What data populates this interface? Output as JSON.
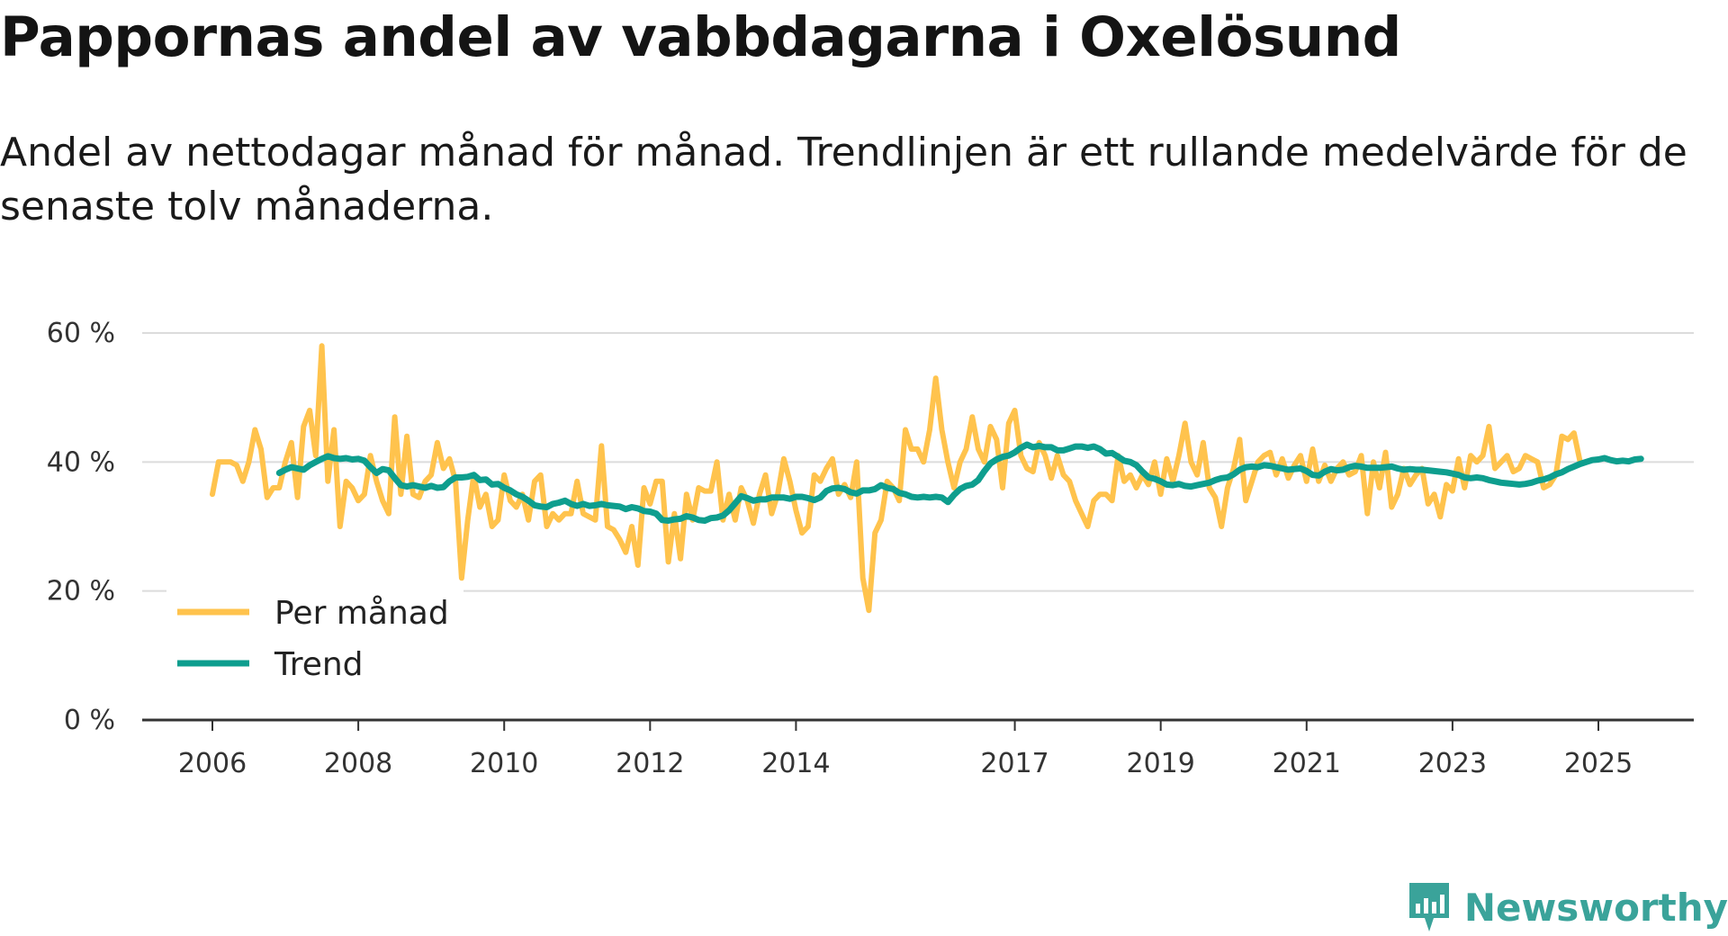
{
  "title": "Pappornas andel av vabbdagarna i Oxelösund",
  "subtitle": "Andel av nettodagar månad för månad. Trendlinjen är ett rullande medelvärde för de senaste tolv månaderna.",
  "brand": "Newsworthy",
  "colors": {
    "monthly": "#ffc34d",
    "trend": "#0e9e8e",
    "grid": "#dcdcdc",
    "axis": "#333333",
    "brand": "#3aa39a"
  },
  "chart_data": {
    "type": "line",
    "title": "Pappornas andel av vabbdagarna i Oxelösund",
    "xlabel": "",
    "ylabel": "",
    "ylim": [
      0,
      60
    ],
    "xlim": [
      2005.5,
      2026.7
    ],
    "y_ticks": [
      "0 %",
      "20 %",
      "40 %",
      "60 %"
    ],
    "y_tick_values": [
      0,
      20,
      40,
      60
    ],
    "x_ticks": [
      "2006",
      "2008",
      "2010",
      "2012",
      "2014",
      "2017",
      "2019",
      "2021",
      "2023",
      "2025"
    ],
    "x_tick_values": [
      2006,
      2008,
      2010,
      2012,
      2014,
      2017,
      2019,
      2021,
      2023,
      2025
    ],
    "legend": [
      "Per månad",
      "Trend"
    ],
    "legend_position": "bottom-left",
    "series": [
      {
        "name": "Per månad",
        "start": 2006.0,
        "step": 0.08333,
        "values": [
          35,
          40,
          40,
          40,
          39.5,
          37,
          40,
          45,
          42,
          34.5,
          36,
          36,
          40,
          43,
          34.5,
          45.5,
          48,
          41,
          58,
          37,
          45,
          30,
          37,
          36,
          34,
          35,
          41,
          37,
          34,
          32,
          47,
          35,
          44,
          35,
          34.5,
          37,
          38,
          43,
          39,
          40.5,
          37,
          22,
          31,
          38,
          33,
          35,
          30,
          31,
          38,
          34,
          33,
          35,
          31,
          37,
          38,
          30,
          32,
          31,
          32,
          32,
          37,
          32,
          31.5,
          31,
          42.5,
          30,
          29.5,
          28,
          26,
          30,
          24,
          36,
          33.5,
          37,
          37,
          24.5,
          32,
          25,
          35,
          31,
          36,
          35.5,
          35.5,
          40,
          31,
          35,
          31,
          36,
          34,
          30.5,
          35,
          38,
          32,
          35,
          40.5,
          37,
          32.5,
          29,
          30,
          38,
          37,
          39,
          40.5,
          35,
          36.5,
          34.5,
          40,
          22,
          17,
          29,
          31,
          37,
          36,
          34,
          45,
          42,
          42,
          40,
          45,
          53,
          45,
          40,
          36,
          40,
          42,
          47,
          42,
          40,
          45.5,
          43.5,
          36,
          46,
          48,
          41,
          39,
          38.5,
          43,
          41,
          37.5,
          41,
          38,
          37,
          34,
          32,
          30,
          34,
          35,
          35,
          34,
          41,
          37,
          38,
          36,
          38,
          36.5,
          40,
          35,
          40.5,
          37,
          41,
          46,
          40,
          38,
          43,
          36,
          34.5,
          30,
          36,
          39,
          43.5,
          34,
          37,
          40,
          41,
          41.5,
          38,
          40.5,
          37.5,
          39.5,
          41,
          37,
          42,
          37,
          39.5,
          37,
          39,
          40,
          38,
          38.5,
          41,
          32,
          40,
          36,
          41.5,
          33,
          35,
          39,
          36.5,
          38,
          39,
          33.5,
          35,
          31.5,
          36.5,
          35.5,
          40.5,
          36,
          41,
          40,
          41,
          45.5,
          39,
          40,
          41,
          38.5,
          39,
          41,
          40.5,
          40,
          36,
          36.5,
          38,
          44,
          43.5,
          44.5,
          40
        ]
      },
      {
        "name": "Trend",
        "start": 2006.917,
        "step": 0.08333,
        "values": [
          38.3,
          38.8,
          39.2,
          39.0,
          38.8,
          39.5,
          40.0,
          40.5,
          40.9,
          40.6,
          40.5,
          40.6,
          40.4,
          40.5,
          40.2,
          39.2,
          38.3,
          38.9,
          38.7,
          37.5,
          36.4,
          36.2,
          36.4,
          36.2,
          36.0,
          36.3,
          36.0,
          36.1,
          37.0,
          37.6,
          37.6,
          37.7,
          38.0,
          37.2,
          37.3,
          36.5,
          36.6,
          36.0,
          35.6,
          35.0,
          34.6,
          34.0,
          33.3,
          33.1,
          33.0,
          33.5,
          33.7,
          34.0,
          33.5,
          33.2,
          33.5,
          33.2,
          33.3,
          33.5,
          33.3,
          33.2,
          33.1,
          32.7,
          33.0,
          32.8,
          32.4,
          32.3,
          32.0,
          31.0,
          30.9,
          31.1,
          31.2,
          31.6,
          31.4,
          31.0,
          30.9,
          31.3,
          31.4,
          31.7,
          32.5,
          33.6,
          34.7,
          34.4,
          34.0,
          34.2,
          34.2,
          34.5,
          34.5,
          34.5,
          34.3,
          34.6,
          34.6,
          34.4,
          34.1,
          34.5,
          35.5,
          35.9,
          36.0,
          35.8,
          35.3,
          35.1,
          35.6,
          35.6,
          35.8,
          36.4,
          36.0,
          35.8,
          35.2,
          35.0,
          34.6,
          34.5,
          34.6,
          34.5,
          34.6,
          34.5,
          33.8,
          34.9,
          35.8,
          36.3,
          36.5,
          37.2,
          38.6,
          39.8,
          40.4,
          40.8,
          41.0,
          41.5,
          42.2,
          42.7,
          42.3,
          42.5,
          42.3,
          42.3,
          41.8,
          41.8,
          42.1,
          42.4,
          42.4,
          42.2,
          42.4,
          42.0,
          41.3,
          41.4,
          40.8,
          40.2,
          40.0,
          39.5,
          38.5,
          37.6,
          37.4,
          37.0,
          36.5,
          36.4,
          36.6,
          36.3,
          36.2,
          36.4,
          36.6,
          36.8,
          37.2,
          37.5,
          37.6,
          38.1,
          38.8,
          39.2,
          39.3,
          39.2,
          39.5,
          39.4,
          39.2,
          39.0,
          38.8,
          38.9,
          39.0,
          38.6,
          38.0,
          37.9,
          38.5,
          38.9,
          38.7,
          38.8,
          39.2,
          39.4,
          39.3,
          39.1,
          39.1,
          39.1,
          39.2,
          39.3,
          39.0,
          38.8,
          38.9,
          38.8,
          38.8,
          38.7,
          38.6,
          38.5,
          38.4,
          38.2,
          38.0,
          37.6,
          37.5,
          37.6,
          37.5,
          37.2,
          37.0,
          36.8,
          36.7,
          36.6,
          36.5,
          36.6,
          36.8,
          37.1,
          37.3,
          37.6,
          38.1,
          38.4,
          38.9,
          39.3,
          39.7,
          40.0,
          40.3,
          40.4,
          40.6,
          40.3,
          40.1,
          40.2,
          40.1,
          40.4,
          40.5
        ]
      }
    ]
  }
}
